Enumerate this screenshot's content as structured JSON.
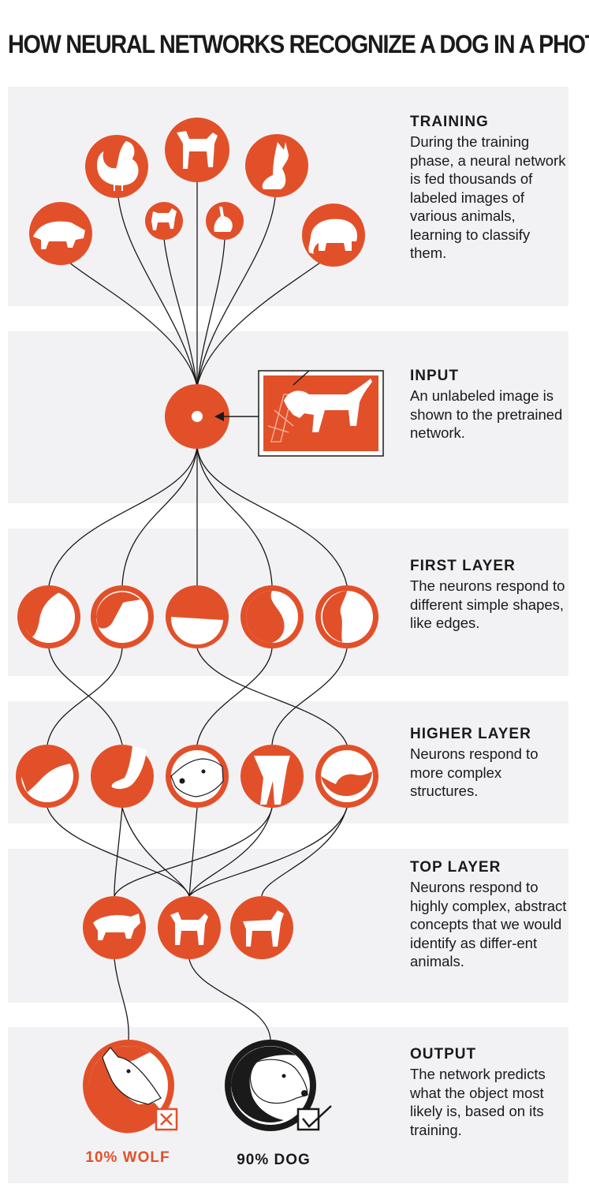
{
  "title": "HOW NEURAL NETWORKS RECOGNIZE A DOG IN A PHOTO",
  "colors": {
    "accent": "#e2502a",
    "panel": "#f2f2f4",
    "ink": "#1a1a1a",
    "white": "#ffffff"
  },
  "sections": {
    "training": {
      "heading": "TRAINING",
      "body": "During the training phase, a neural network is fed thousands of labeled images of various animals, learning to classify them."
    },
    "input": {
      "heading": "INPUT",
      "body": "An unlabeled image is shown to the pretrained network."
    },
    "first_layer": {
      "heading": "FIRST LAYER",
      "body": "The neurons respond to different simple shapes, like edges."
    },
    "higher_layer": {
      "heading": "HIGHER LAYER",
      "body": "Neurons respond to more complex structures."
    },
    "top_layer": {
      "heading": "TOP LAYER",
      "body": "Neurons respond to highly complex, abstract concepts that we would identify as differ-ent animals."
    },
    "output": {
      "heading": "OUTPUT",
      "body": "The network predicts what the object most likely is, based on its training."
    }
  },
  "training_icons": [
    "boar-icon",
    "rooster-icon",
    "small-dog-icon",
    "dog-icon",
    "rabbit-icon",
    "cat-icon",
    "elephant-icon"
  ],
  "first_layer_icons": [
    "curve-edge-icon",
    "peak-edge-icon",
    "flat-edge-icon",
    "crescent-edge-icon",
    "vertical-edge-icon"
  ],
  "higher_layer_icons": [
    "ear-shape-icon",
    "paw-shape-icon",
    "dog-face-icon",
    "legs-shape-icon",
    "back-shape-icon"
  ],
  "top_layer_icons": [
    "wolf-body-icon",
    "dog-body-icon",
    "horse-body-icon"
  ],
  "output": {
    "wolf": {
      "label": "10% WOLF",
      "icon": "wolf-head-icon",
      "mark": "x-box-icon"
    },
    "dog": {
      "label": "90% DOG",
      "icon": "dog-head-icon",
      "mark": "check-box-icon"
    }
  }
}
